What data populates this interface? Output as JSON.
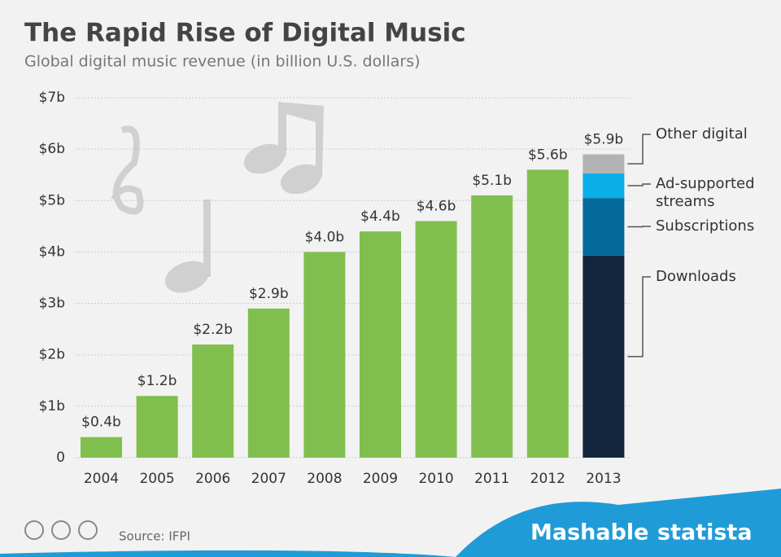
{
  "chart_data": {
    "type": "bar",
    "title": "The Rapid Rise of Digital Music",
    "subtitle": "Global digital music revenue (in billion U.S. dollars)",
    "categories": [
      "2004",
      "2005",
      "2006",
      "2007",
      "2008",
      "2009",
      "2010",
      "2011",
      "2012",
      "2013"
    ],
    "values": [
      0.4,
      1.2,
      2.2,
      2.9,
      4.0,
      4.4,
      4.6,
      5.1,
      5.6,
      5.9
    ],
    "value_labels": [
      "$0.4b",
      "$1.2b",
      "$2.2b",
      "$2.9b",
      "$4.0b",
      "$4.4b",
      "$4.6b",
      "$5.1b",
      "$5.6b",
      "$5.9b"
    ],
    "color": "#80bf4e",
    "breakdown": {
      "series": [
        {
          "name": "Downloads",
          "color": "#13263d",
          "values": [
            null,
            null,
            null,
            null,
            null,
            null,
            null,
            null,
            null,
            3.93
          ]
        },
        {
          "name": "Subscriptions",
          "color": "#046a9c",
          "values": [
            null,
            null,
            null,
            null,
            null,
            null,
            null,
            null,
            null,
            1.12
          ]
        },
        {
          "name": "Ad-supported streams",
          "color": "#0aaee8",
          "values": [
            null,
            null,
            null,
            null,
            null,
            null,
            null,
            null,
            null,
            0.48
          ]
        },
        {
          "name": "Other digital",
          "color": "#b3b3b3",
          "values": [
            null,
            null,
            null,
            null,
            null,
            null,
            null,
            null,
            null,
            0.37
          ]
        }
      ]
    },
    "ylim": [
      0,
      7
    ],
    "yticks": [
      0,
      {
        "value": 1,
        "label": "$1b"
      },
      {
        "value": 2,
        "label": "$2b"
      },
      {
        "value": 3,
        "label": "$3b"
      },
      {
        "value": 4,
        "label": "$4b"
      },
      {
        "value": 5,
        "label": "$5b"
      },
      {
        "value": 6,
        "label": "$6b"
      },
      {
        "value": 7,
        "label": "$7b"
      }
    ],
    "grid": true,
    "source": "Source: IFPI",
    "brands": [
      "Mashable",
      "statista"
    ]
  }
}
